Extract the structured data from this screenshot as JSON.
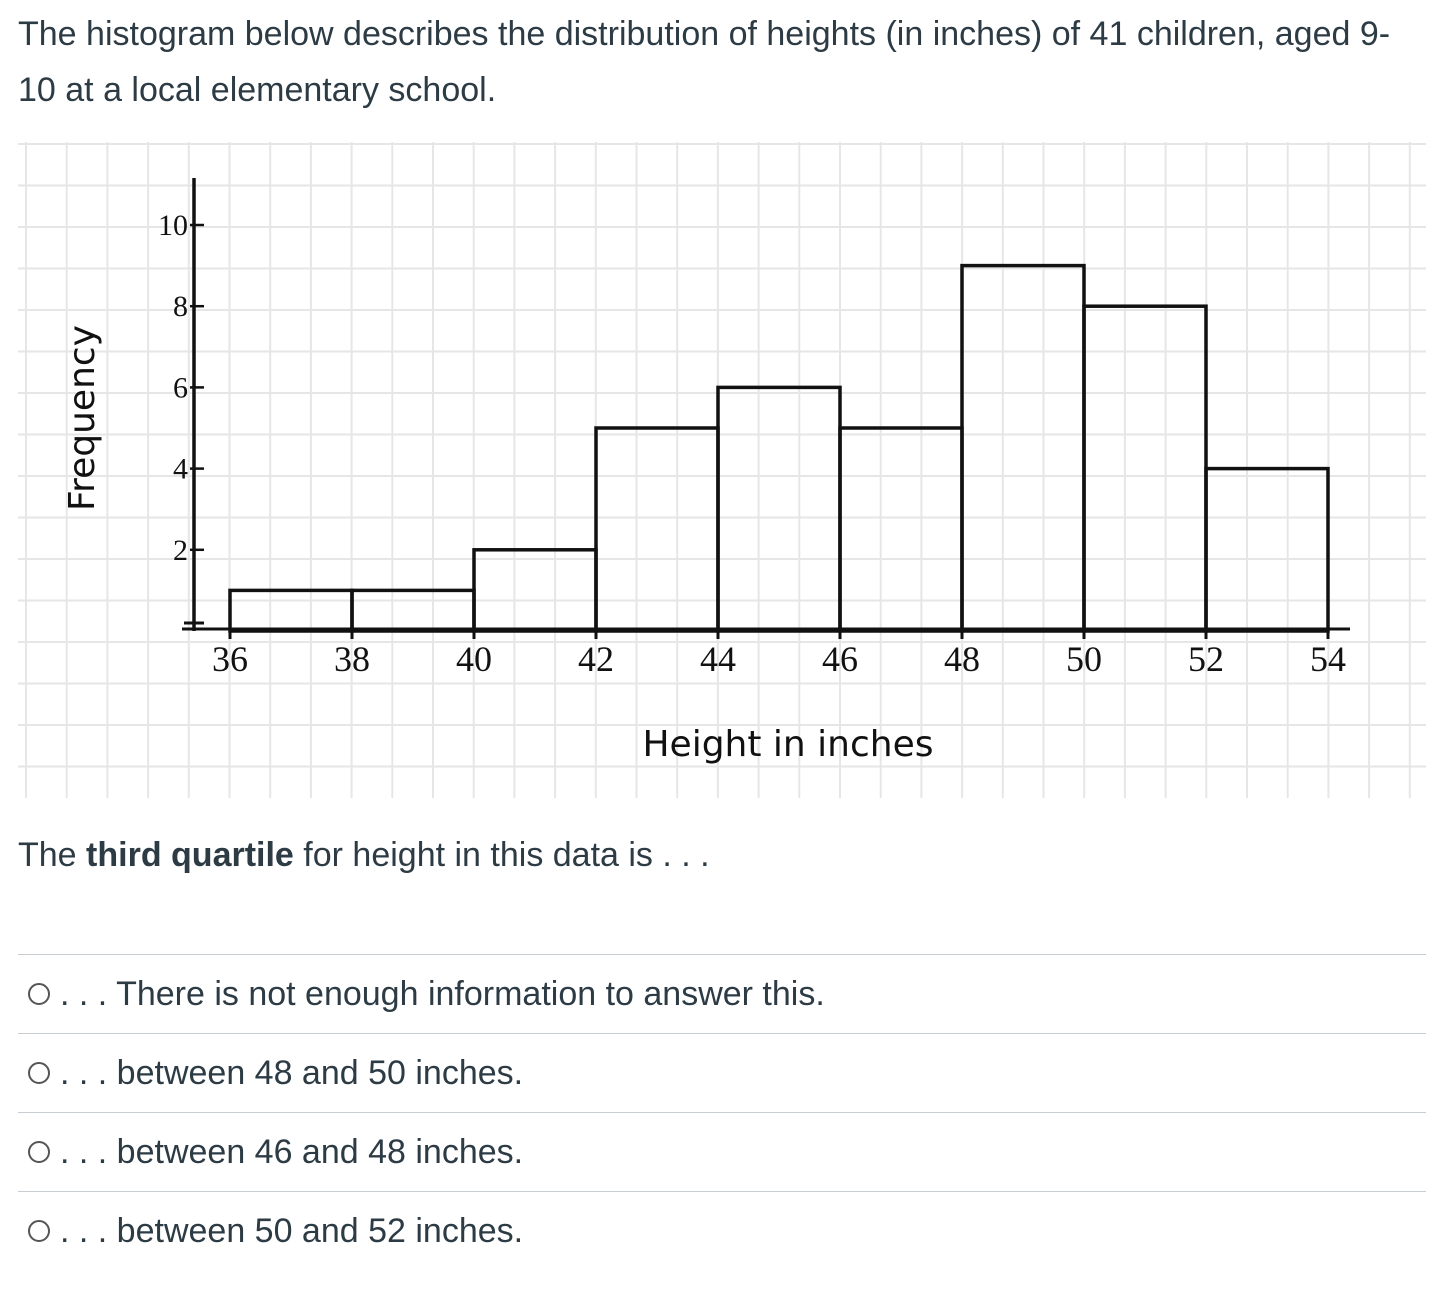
{
  "question": {
    "intro": "The histogram below describes the distribution of heights (in inches) of 41 children, aged 9-10 at a local elementary school.",
    "prompt_prefix": "The ",
    "prompt_bold": "third quartile",
    "prompt_suffix": " for height in this data is . . ."
  },
  "chart_data": {
    "type": "bar",
    "title": "",
    "xlabel": "Height in inches",
    "ylabel": "Frequency",
    "bin_edges": [
      36,
      38,
      40,
      42,
      44,
      46,
      48,
      50,
      52,
      54
    ],
    "values": [
      1,
      1,
      2,
      5,
      6,
      5,
      9,
      8,
      4
    ],
    "xlim": [
      36,
      54
    ],
    "ylim": [
      0,
      10
    ],
    "x_ticks": [
      "36",
      "38",
      "40",
      "42",
      "44",
      "46",
      "48",
      "50",
      "52",
      "54"
    ],
    "y_ticks": [
      "2",
      "4",
      "6",
      "8",
      "10"
    ],
    "grid": true
  },
  "options": [
    {
      "label": ". . . There is not enough information to answer this."
    },
    {
      "label": ". . . between 48 and 50 inches."
    },
    {
      "label": ". . . between 46 and 48 inches."
    },
    {
      "label": ". . . between 50 and 52 inches."
    }
  ],
  "colors": {
    "grid": "#e6e6e6",
    "ink": "#111111",
    "text": "#2d3b45",
    "divider": "#c7cdd1"
  }
}
